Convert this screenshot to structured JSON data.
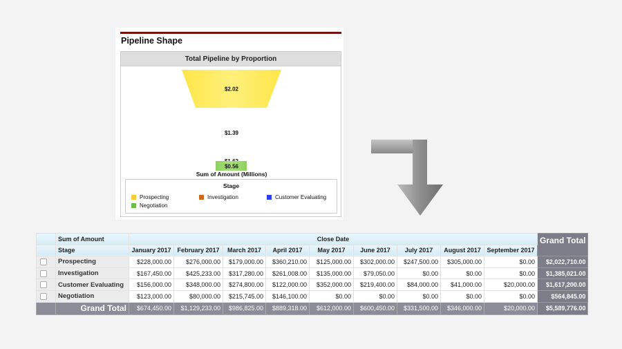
{
  "panel": {
    "title": "Pipeline Shape"
  },
  "chart_data": {
    "type": "funnel",
    "title": "Total Pipeline by Proportion",
    "xlabel": "Sum of Amount (Millions)",
    "legend_title": "Stage",
    "legend_placement": "bottom",
    "categories": [
      "Prospecting",
      "Investigation",
      "Customer Evaluating",
      "Negotiation"
    ],
    "values": [
      2.02,
      1.39,
      1.62,
      0.56
    ],
    "labels": [
      "$2.02",
      "$1.39",
      "$1.62",
      "$0.56"
    ],
    "colors": [
      "#fde64a",
      "#d9782f",
      "#3350f5",
      "#8fd060"
    ]
  },
  "arrow": {
    "icon": "bent-down-arrow-icon",
    "color": "#9a9a9a"
  },
  "table": {
    "corner_label": "Sum of Amount",
    "row_header_label": "Stage",
    "column_group_label": "Close Date",
    "grand_total_label": "Grand Total",
    "months": [
      "January 2017",
      "February 2017",
      "March 2017",
      "April 2017",
      "May 2017",
      "June 2017",
      "July 2017",
      "August 2017",
      "September 2017"
    ],
    "rows": [
      {
        "stage": "Prospecting",
        "values": [
          "$228,000.00",
          "$276,000.00",
          "$179,000.00",
          "$360,210.00",
          "$125,000.00",
          "$302,000.00",
          "$247,500.00",
          "$305,000.00",
          "$0.00"
        ],
        "total": "$2,022,710.00"
      },
      {
        "stage": "Investigation",
        "values": [
          "$167,450.00",
          "$425,233.00",
          "$317,280.00",
          "$261,008.00",
          "$135,000.00",
          "$79,050.00",
          "$0.00",
          "$0.00",
          "$0.00"
        ],
        "total": "$1,385,021.00"
      },
      {
        "stage": "Customer Evaluating",
        "values": [
          "$156,000.00",
          "$348,000.00",
          "$274,800.00",
          "$122,000.00",
          "$352,000.00",
          "$219,400.00",
          "$84,000.00",
          "$41,000.00",
          "$20,000.00"
        ],
        "total": "$1,617,200.00"
      },
      {
        "stage": "Negotiation",
        "values": [
          "$123,000.00",
          "$80,000.00",
          "$215,745.00",
          "$146,100.00",
          "$0.00",
          "$0.00",
          "$0.00",
          "$0.00",
          "$0.00"
        ],
        "total": "$564,845.00"
      }
    ],
    "grand_totals": [
      "$674,450.00",
      "$1,129,233.00",
      "$986,825.00",
      "$889,318.00",
      "$612,000.00",
      "$600,450.00",
      "$331,500.00",
      "$346,000.00",
      "$20,000.00"
    ],
    "grand_total_all": "$5,589,776.00"
  }
}
